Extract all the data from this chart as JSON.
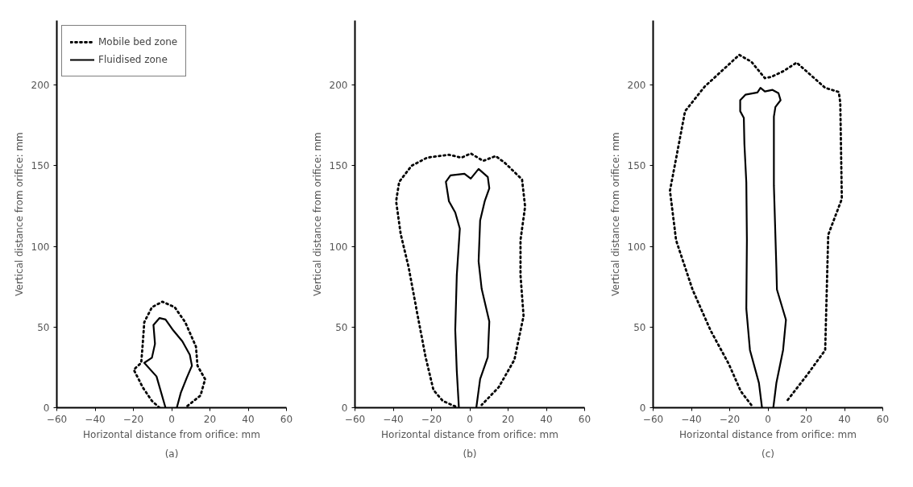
{
  "chart_data": [
    {
      "type": "line",
      "title": "(a)",
      "xlabel": "Horizontal distance from orifice: mm",
      "ylabel": "Vertical distance from orifice: mm",
      "xlim": [
        -60,
        60
      ],
      "ylim": [
        0,
        240
      ],
      "xticks": [
        -60,
        -40,
        -20,
        0,
        20,
        40,
        60
      ],
      "yticks": [
        0,
        50,
        100,
        150,
        200
      ],
      "grid": false,
      "legend": "top left",
      "series": [
        {
          "name": "Mobile bed zone",
          "color": "#000000",
          "line_style": "dotted",
          "x": [
            -6.3,
            -10.3,
            -15.1,
            -19.8,
            -15.9,
            -15.1,
            -14.3,
            -10.3,
            -4.8,
            1.6,
            7.1,
            12.7,
            13.5,
            17.5,
            15.1,
            7.1
          ],
          "values": [
            0,
            4.2,
            12.6,
            23.6,
            27.8,
            39.6,
            53,
            62.3,
            65.7,
            62.3,
            53,
            37.9,
            26,
            17.7,
            7.6,
            0
          ]
        },
        {
          "name": "Fluidised zone",
          "color": "#000000",
          "line_style": "solid",
          "x": [
            -3.2,
            -7.9,
            -14.3,
            -10.3,
            -8.7,
            -9.5,
            -6.3,
            -3.2,
            0.8,
            5.6,
            9.5,
            10.6,
            7.9,
            4.8,
            2.7
          ],
          "values": [
            0,
            19.4,
            27.8,
            31,
            39.6,
            51.3,
            55.6,
            54.7,
            48,
            41.2,
            32.8,
            26,
            18.5,
            9.3,
            0
          ]
        }
      ]
    },
    {
      "type": "line",
      "title": "(b)",
      "xlabel": "Horizontal distance from orifice: mm",
      "ylabel": "Vertical distance from orifice: mm",
      "xlim": [
        -60,
        60
      ],
      "ylim": [
        0,
        240
      ],
      "xticks": [
        -60,
        -40,
        -20,
        0,
        20,
        40,
        60
      ],
      "yticks": [
        0,
        50,
        100,
        150,
        200
      ],
      "grid": false,
      "series": [
        {
          "color": "#000000",
          "line_style": "dotted",
          "x": [
            -7.6,
            -14.1,
            -19,
            -23.1,
            -27.2,
            -32,
            -36.1,
            -38.5,
            -36.9,
            -30.4,
            -22.3,
            -10.9,
            -4.4,
            0.5,
            7,
            13.5,
            18.4,
            27.3,
            28.9,
            26.5,
            26.5,
            28.1,
            23.3,
            15.1,
            6.2
          ],
          "values": [
            0.8,
            4.2,
            11,
            31.4,
            56.8,
            87.3,
            107.6,
            128,
            140,
            150,
            155,
            156.8,
            155,
            157.6,
            153,
            156,
            151.7,
            141.5,
            124.6,
            104,
            82,
            56.8,
            29.7,
            12.7,
            1.7
          ]
        },
        {
          "color": "#000000",
          "line_style": "solid",
          "x": [
            -5.7,
            -6.8,
            -7.6,
            -6.8,
            -5.2,
            -7.6,
            -10.9,
            -12.5,
            -10.1,
            -2.8,
            0.5,
            4.6,
            9.4,
            10.2,
            7.8,
            5.4,
            4.6,
            6.2,
            10.2,
            9.4,
            5.4,
            3.4
          ],
          "values": [
            0,
            22.9,
            48.3,
            82,
            111,
            121,
            128,
            140,
            144,
            145,
            142,
            148,
            143,
            136,
            128,
            116,
            90.7,
            73.7,
            53.4,
            31.4,
            17.8,
            0
          ]
        }
      ]
    },
    {
      "type": "line",
      "title": "(c)",
      "xlabel": "Horizontal distance from orifice: mm",
      "ylabel": "Vertical distance from orifice: mm",
      "xlim": [
        -60,
        60
      ],
      "ylim": [
        0,
        240
      ],
      "xticks": [
        -60,
        -40,
        -20,
        0,
        20,
        40,
        60
      ],
      "yticks": [
        0,
        50,
        100,
        150,
        200
      ],
      "grid": false,
      "series": [
        {
          "color": "#000000",
          "line_style": "dotted",
          "x": [
            -8.7,
            -14.2,
            -20.5,
            -29.9,
            -39.4,
            -48,
            -51.2,
            -43.3,
            -33.1,
            -15,
            -8.7,
            -1.6,
            1.6,
            7.9,
            15,
            29.9,
            37,
            37.8,
            38.6,
            31.5,
            29.9,
            20.5,
            9.4
          ],
          "values": [
            1.7,
            10.2,
            27.2,
            47.7,
            73.2,
            103.8,
            134.5,
            183.8,
            199,
            218.7,
            214.5,
            204.3,
            205,
            208.5,
            213.9,
            198.3,
            195.7,
            188.9,
            129.4,
            107.2,
            35.7,
            20.4,
            3.4
          ]
        },
        {
          "color": "#000000",
          "line_style": "solid",
          "x": [
            -3.1,
            -4.7,
            -9.4,
            -11.3,
            -11,
            -11.3,
            -12.3,
            -12.6,
            -14.5,
            -14.5,
            -11.8,
            -5.5,
            -3.9,
            -1.6,
            2.4,
            5.5,
            6.6,
            3.9,
            3.1,
            3.1,
            4.4,
            4.7,
            9.4,
            7.9,
            4.4,
            2.8
          ],
          "values": [
            0,
            15.3,
            35.7,
            61.3,
            104,
            139.6,
            163.4,
            179.6,
            183.8,
            190.6,
            194,
            195.4,
            198.3,
            196,
            197,
            195,
            190.6,
            186.4,
            180.4,
            137.9,
            86.8,
            73.2,
            54.5,
            35.7,
            15.3,
            0
          ]
        }
      ]
    }
  ]
}
